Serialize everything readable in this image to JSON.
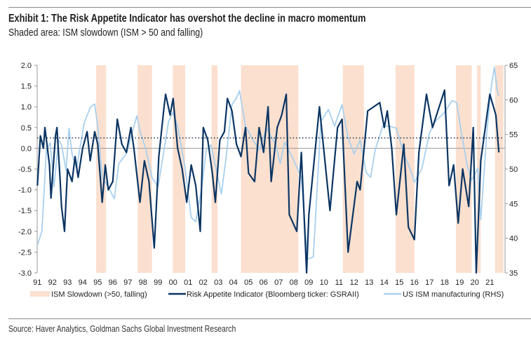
{
  "title": "Exhibit 1: The Risk Appetite Indicator has overshot the decline in macro momentum",
  "subtitle": "Shaded area: ISM slowdown (ISM > 50 and falling)",
  "source": "Source: Haver Analytics, Goldman Sachs Global Investment Research",
  "colors": {
    "shade": "#fbe0cf",
    "rai": "#0b3563",
    "ism": "#a9d0ee",
    "zero": "#9a9a9a"
  },
  "chart_data": {
    "type": "line",
    "x_tick_labels": [
      "91",
      "92",
      "93",
      "94",
      "95",
      "96",
      "97",
      "98",
      "99",
      "00",
      "01",
      "02",
      "03",
      "04",
      "05",
      "06",
      "07",
      "08",
      "09",
      "10",
      "11",
      "12",
      "13",
      "14",
      "15",
      "16",
      "17",
      "18",
      "19",
      "20",
      "21"
    ],
    "xlim": [
      1991,
      2022
    ],
    "y_left": {
      "ylim": [
        -3.0,
        2.0
      ],
      "tick_labels": [
        "2.0",
        "1.5",
        "1.0",
        "0.5",
        "0.0",
        "-0.5",
        "-1.0",
        "-1.5",
        "-2.0",
        "-2.5",
        "-3.0"
      ]
    },
    "y_right": {
      "ylim": [
        35,
        65
      ],
      "tick_labels": [
        "65",
        "60",
        "55",
        "50",
        "45",
        "40",
        "35"
      ]
    },
    "reference_lines": [
      {
        "axis": "left",
        "value": 0.0,
        "style": "solid"
      },
      {
        "axis": "left",
        "value": 0.25,
        "style": "dotted"
      }
    ],
    "legend_position": "bottom",
    "shaded_periods": {
      "name": "ISM Slowdown (>50, falling)",
      "ranges": [
        [
          1994.9,
          1995.55
        ],
        [
          1997.65,
          1998.6
        ],
        [
          1999.98,
          2000.8
        ],
        [
          2002.55,
          2002.95
        ],
        [
          2004.5,
          2008.3
        ],
        [
          2011.25,
          2012.65
        ],
        [
          2014.75,
          2016.0
        ],
        [
          2018.75,
          2019.8
        ],
        [
          2020.15,
          2020.4
        ],
        [
          2021.35,
          2021.9
        ]
      ]
    },
    "series": [
      {
        "name": "Risk Appetite Indicator (Bloomberg ticker: GSRAII)",
        "axis": "left",
        "x": [
          1991.0,
          1991.2,
          1991.4,
          1991.5,
          1991.8,
          1991.9,
          1992.2,
          1992.3,
          1992.5,
          1992.6,
          1992.8,
          1993.0,
          1993.3,
          1993.5,
          1993.7,
          1994.0,
          1994.3,
          1994.5,
          1994.8,
          1995.0,
          1995.3,
          1995.5,
          1995.7,
          1996.0,
          1996.3,
          1996.6,
          1996.9,
          1997.2,
          1997.4,
          1997.8,
          1998.1,
          1998.4,
          1998.75,
          1999.05,
          1999.4,
          1999.5,
          1999.8,
          2000.0,
          2000.3,
          2000.6,
          2000.9,
          2001.2,
          2001.5,
          2001.8,
          2002.0,
          2002.3,
          2002.6,
          2002.8,
          2003.1,
          2003.4,
          2003.6,
          2003.9,
          2004.2,
          2004.5,
          2004.8,
          2005.0,
          2005.4,
          2005.7,
          2006.0,
          2006.3,
          2006.5,
          2006.9,
          2007.2,
          2007.5,
          2007.7,
          2008.2,
          2008.5,
          2008.85,
          2009.0,
          2009.7,
          2010.4,
          2010.9,
          2011.2,
          2011.6,
          2012.2,
          2012.4,
          2012.9,
          2013.7,
          2014.0,
          2014.2,
          2014.5,
          2014.8,
          2015.3,
          2015.6,
          2016.0,
          2016.3,
          2016.8,
          2017.2,
          2018.0,
          2018.3,
          2018.6,
          2018.9,
          2019.2,
          2019.6,
          2019.9,
          2020.1,
          2020.4,
          2021.0,
          2021.4,
          2021.6
        ],
        "y": [
          -0.9,
          0.3,
          0.0,
          0.5,
          -0.4,
          -1.2,
          0.3,
          0.5,
          -0.7,
          -1.4,
          -2.0,
          -0.5,
          -0.8,
          -0.2,
          -0.7,
          0.0,
          0.4,
          -0.3,
          0.4,
          0.1,
          -1.3,
          -0.4,
          -1.0,
          -0.8,
          0.7,
          0.1,
          -0.1,
          0.5,
          0.0,
          -1.3,
          -0.3,
          -0.8,
          -2.4,
          -0.2,
          1.0,
          1.3,
          0.8,
          1.2,
          0.0,
          -0.5,
          -1.3,
          -0.4,
          -0.9,
          -2.0,
          0.5,
          0.2,
          -0.6,
          -1.3,
          0.2,
          0.4,
          1.2,
          0.9,
          0.1,
          -0.2,
          0.5,
          -0.6,
          -0.8,
          0.5,
          -0.1,
          1.0,
          -0.8,
          0.5,
          0.8,
          1.3,
          -1.6,
          -2.0,
          -0.1,
          -3.0,
          -1.6,
          1.0,
          -1.5,
          0.5,
          0.7,
          -2.5,
          -0.8,
          -1.0,
          0.9,
          1.1,
          0.5,
          0.9,
          0.0,
          -1.6,
          0.1,
          -1.9,
          -2.2,
          -0.1,
          1.3,
          0.5,
          1.4,
          -0.9,
          -0.4,
          -1.8,
          -0.5,
          -1.4,
          0.5,
          -3.0,
          -0.3,
          1.3,
          0.8,
          -0.1
        ]
      },
      {
        "name": "US ISM manufacturing (RHS)",
        "axis": "right",
        "x": [
          1991.0,
          1991.3,
          1991.6,
          1991.85,
          1992.1,
          1992.4,
          1992.6,
          1992.9,
          1993.1,
          1993.3,
          1993.6,
          1994.1,
          1994.5,
          1994.8,
          1995.0,
          1995.3,
          1995.7,
          1996.1,
          1996.4,
          1996.9,
          1997.4,
          1997.6,
          1997.8,
          1998.2,
          1998.6,
          1999.0,
          1999.4,
          1999.7,
          2000.0,
          2000.3,
          2000.8,
          2001.2,
          2001.5,
          2001.9,
          2002.2,
          2002.5,
          2002.8,
          2003.2,
          2003.5,
          2003.9,
          2004.2,
          2004.4,
          2004.8,
          2005.3,
          2005.7,
          2006.2,
          2006.8,
          2007.1,
          2007.4,
          2008.1,
          2008.5,
          2008.9,
          2009.3,
          2009.8,
          2010.3,
          2010.7,
          2011.2,
          2011.6,
          2012.0,
          2012.4,
          2012.8,
          2013.1,
          2013.4,
          2013.9,
          2014.3,
          2014.8,
          2015.3,
          2015.7,
          2016.0,
          2016.5,
          2017.0,
          2017.4,
          2018.0,
          2018.5,
          2018.8,
          2019.1,
          2019.5,
          2019.8,
          2020.2,
          2020.4,
          2020.8,
          2021.1,
          2021.3,
          2021.5,
          2021.6
        ],
        "y": [
          39.0,
          41.0,
          52.8,
          53.8,
          47.4,
          54.2,
          53.5,
          49.8,
          55.9,
          52.2,
          50.1,
          56.6,
          58.9,
          59.4,
          56.2,
          48.8,
          47.4,
          45.7,
          50.8,
          52.2,
          56.2,
          57.7,
          55.5,
          52.8,
          48.8,
          47.4,
          52.8,
          56.9,
          58.2,
          56.2,
          50.1,
          43.0,
          42.4,
          47.4,
          52.8,
          53.5,
          50.5,
          46.4,
          51.5,
          59.3,
          60.3,
          61.3,
          56.2,
          54.2,
          52.8,
          55.9,
          53.5,
          50.8,
          53.9,
          50.8,
          48.8,
          37.0,
          37.3,
          56.9,
          58.6,
          56.2,
          59.3,
          54.5,
          52.2,
          54.2,
          49.5,
          48.8,
          52.8,
          56.2,
          56.2,
          55.9,
          52.2,
          50.1,
          48.1,
          50.1,
          55.2,
          56.9,
          58.2,
          59.9,
          59.6,
          55.5,
          50.5,
          48.4,
          50.1,
          42.7,
          55.2,
          62.0,
          64.7,
          61.3,
          60.6
        ]
      }
    ]
  }
}
